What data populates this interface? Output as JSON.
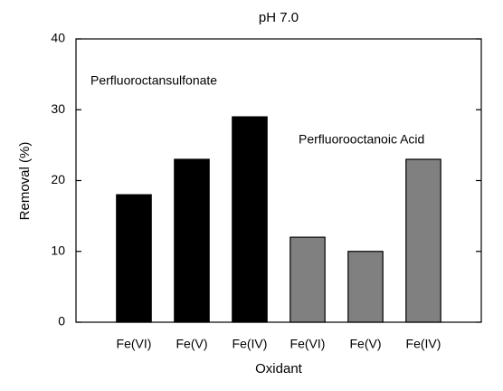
{
  "chart_data": {
    "type": "bar",
    "title": "pH 7.0",
    "xlabel": "Oxidant",
    "ylabel": "Removal (%)",
    "categories": [
      "Fe(VI)",
      "Fe(V)",
      "Fe(IV)",
      "Fe(VI)",
      "Fe(V)",
      "Fe(IV)"
    ],
    "values": [
      18,
      23,
      29,
      12,
      10,
      23
    ],
    "colors": [
      "#000000",
      "#000000",
      "#000000",
      "#808080",
      "#808080",
      "#808080"
    ],
    "annotations": [
      "Perfluoroctansulfonate",
      "Perfluorooctanoic Acid"
    ],
    "ylim": [
      0,
      40
    ],
    "yticks": [
      0,
      10,
      20,
      30,
      40
    ],
    "grid": false
  }
}
